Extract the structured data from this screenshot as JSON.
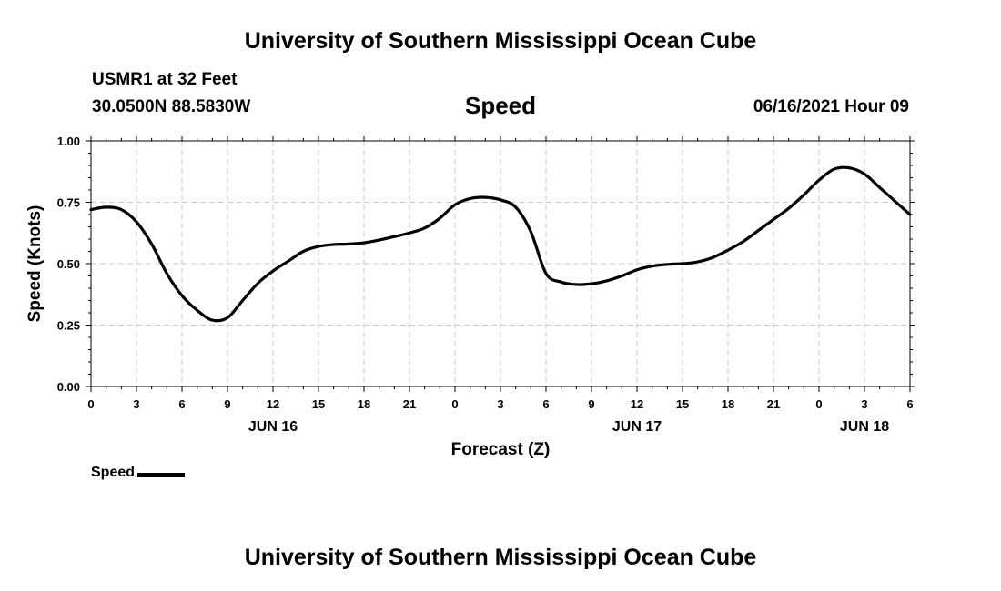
{
  "header": {
    "title": "University of Southern Mississippi Ocean Cube",
    "station": "USMR1 at 32 Feet",
    "coords": "30.0500N  88.5830W",
    "variable": "Speed",
    "timestamp": "06/16/2021 Hour 09"
  },
  "footer": {
    "title": "University of Southern Mississippi Ocean Cube"
  },
  "legend": {
    "label": "Speed"
  },
  "chart_data": {
    "type": "line",
    "title": "Speed",
    "xlabel": "Forecast (Z)",
    "ylabel": "Speed (Knots)",
    "xlim": [
      0,
      54
    ],
    "ylim": [
      0,
      1
    ],
    "grid": true,
    "x_ticks": [
      {
        "x": 0,
        "label": "0"
      },
      {
        "x": 3,
        "label": "3"
      },
      {
        "x": 6,
        "label": "6"
      },
      {
        "x": 9,
        "label": "9"
      },
      {
        "x": 12,
        "label": "12"
      },
      {
        "x": 15,
        "label": "15"
      },
      {
        "x": 18,
        "label": "18"
      },
      {
        "x": 21,
        "label": "21"
      },
      {
        "x": 24,
        "label": "0"
      },
      {
        "x": 27,
        "label": "3"
      },
      {
        "x": 30,
        "label": "6"
      },
      {
        "x": 33,
        "label": "9"
      },
      {
        "x": 36,
        "label": "12"
      },
      {
        "x": 39,
        "label": "15"
      },
      {
        "x": 42,
        "label": "18"
      },
      {
        "x": 45,
        "label": "21"
      },
      {
        "x": 48,
        "label": "0"
      },
      {
        "x": 51,
        "label": "3"
      },
      {
        "x": 54,
        "label": "6"
      }
    ],
    "y_ticks": [
      {
        "y": 0,
        "label": "0.00"
      },
      {
        "y": 0.25,
        "label": "0.25"
      },
      {
        "y": 0.5,
        "label": "0.50"
      },
      {
        "y": 0.75,
        "label": "0.75"
      },
      {
        "y": 1.0,
        "label": "1.00"
      }
    ],
    "day_labels": [
      {
        "x": 12,
        "label": "JUN 16"
      },
      {
        "x": 36,
        "label": "JUN 17"
      },
      {
        "x": 51,
        "label": "JUN 18"
      }
    ],
    "series": [
      {
        "name": "Speed",
        "color": "#000000",
        "x": [
          0,
          1,
          2,
          3,
          4,
          5,
          6,
          7,
          8,
          9,
          10,
          11,
          12,
          13,
          14,
          15,
          16,
          17,
          18,
          19,
          20,
          21,
          22,
          23,
          24,
          25,
          26,
          27,
          28,
          29,
          30,
          31,
          32,
          33,
          34,
          35,
          36,
          37,
          38,
          39,
          40,
          41,
          42,
          43,
          44,
          45,
          46,
          47,
          48,
          49,
          50,
          51,
          52,
          53,
          54
        ],
        "values": [
          0.72,
          0.73,
          0.72,
          0.67,
          0.58,
          0.46,
          0.37,
          0.31,
          0.27,
          0.28,
          0.35,
          0.42,
          0.47,
          0.51,
          0.55,
          0.57,
          0.578,
          0.58,
          0.585,
          0.596,
          0.61,
          0.625,
          0.645,
          0.685,
          0.74,
          0.765,
          0.77,
          0.76,
          0.73,
          0.63,
          0.46,
          0.425,
          0.415,
          0.418,
          0.43,
          0.45,
          0.475,
          0.49,
          0.497,
          0.5,
          0.507,
          0.525,
          0.555,
          0.59,
          0.635,
          0.68,
          0.725,
          0.78,
          0.84,
          0.885,
          0.89,
          0.865,
          0.81,
          0.755,
          0.7
        ]
      }
    ]
  }
}
